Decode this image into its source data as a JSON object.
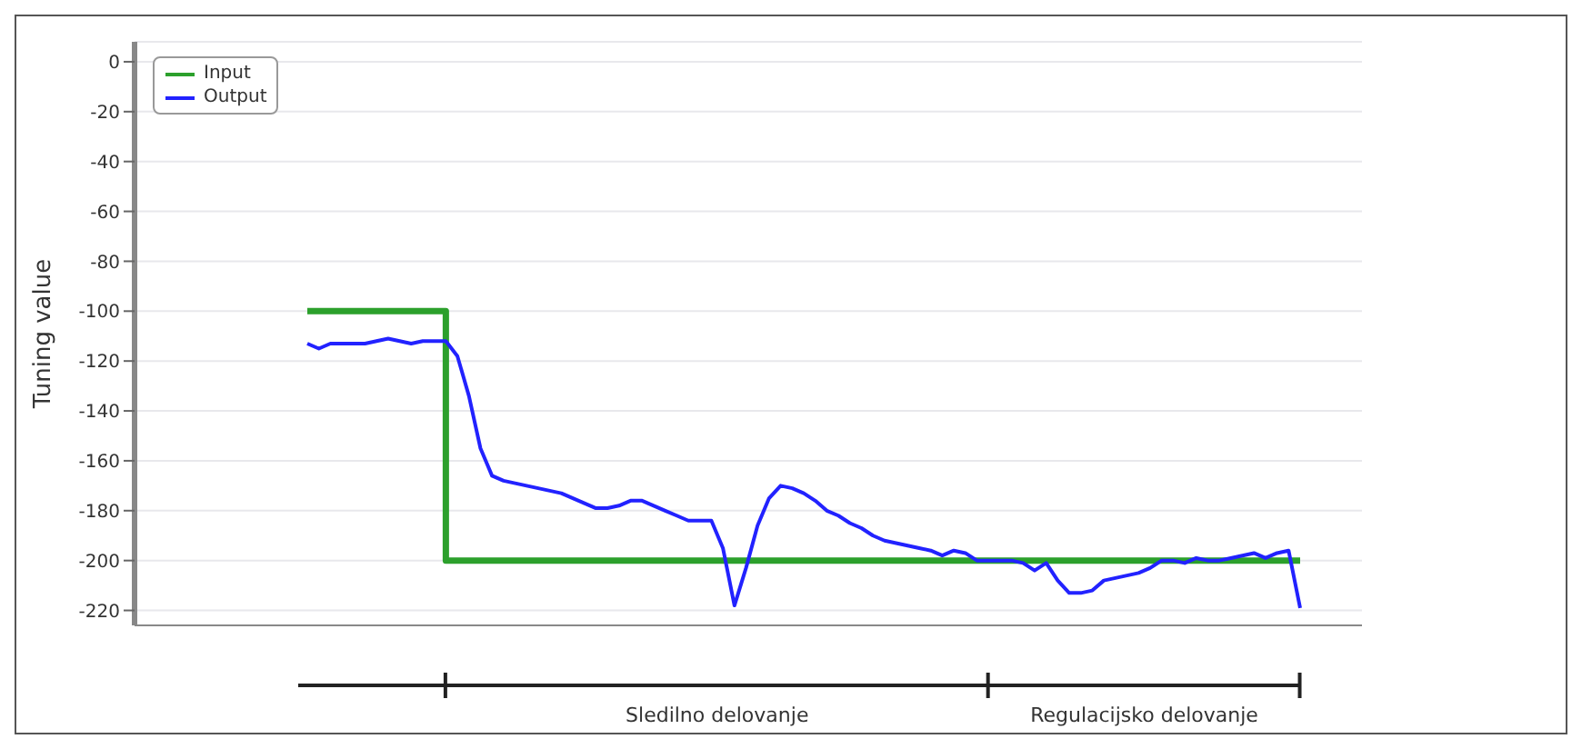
{
  "chart_data": {
    "type": "line",
    "ylabel": "Tuning value",
    "categories": [
      null,
      null,
      null,
      null,
      null,
      null,
      null,
      null,
      null,
      null,
      null,
      null,
      null,
      null,
      null,
      null,
      null,
      null,
      null,
      null,
      null,
      null,
      null,
      null,
      null,
      null,
      null,
      null,
      null,
      null,
      null,
      null,
      null,
      null,
      null,
      null,
      null,
      null,
      null,
      null,
      null,
      null,
      null,
      null,
      null,
      null,
      null,
      null,
      null,
      null,
      null,
      null,
      null,
      null,
      null,
      null,
      null,
      null,
      null,
      null,
      null,
      null,
      null,
      null,
      null,
      null,
      null,
      null,
      null,
      null,
      null,
      null,
      null,
      null,
      null,
      null,
      null,
      null,
      null,
      null,
      null,
      null,
      null,
      null,
      null,
      null,
      null
    ],
    "ylim": [
      -226,
      8
    ],
    "yticks": [
      0,
      -20,
      -40,
      -60,
      -80,
      -100,
      -120,
      -140,
      -160,
      -180,
      -200,
      -220
    ],
    "grid": "y",
    "legend": "top left",
    "line_style": "solid",
    "annotations": [
      "Sledilno delovanje",
      "Regulacijsko delovanje"
    ],
    "series": [
      {
        "name": "Input",
        "type": "step",
        "color": "#2ca02c",
        "values": [
          -100,
          -100,
          -100,
          -100,
          -100,
          -100,
          -100,
          -100,
          -100,
          -100,
          -100,
          -100,
          -200,
          -200,
          -200,
          -200,
          -200,
          -200,
          -200,
          -200,
          -200,
          -200,
          -200,
          -200,
          -200,
          -200,
          -200,
          -200,
          -200,
          -200,
          -200,
          -200,
          -200,
          -200,
          -200,
          -200,
          -200,
          -200,
          -200,
          -200,
          -200,
          -200,
          -200,
          -200,
          -200,
          -200,
          -200,
          -200,
          -200,
          -200,
          -200,
          -200,
          -200,
          -200,
          -200,
          -200,
          -200,
          -200,
          -200,
          -200,
          -200,
          -200,
          -200,
          -200,
          -200,
          -200,
          -200,
          -200,
          -200,
          -200,
          -200,
          -200,
          -200,
          -200,
          -200,
          -200,
          -200,
          -200,
          -200,
          -200,
          -200,
          -200,
          -200,
          -200,
          -200,
          -200,
          -200
        ]
      },
      {
        "name": "Output",
        "color": "#2222ff",
        "values": [
          -113,
          -115,
          -113,
          -113,
          -113,
          -113,
          -112,
          -111,
          -112,
          -113,
          -112,
          -112,
          -112,
          -118,
          -134,
          -155,
          -166,
          -168,
          -169,
          -170,
          -171,
          -172,
          -173,
          -175,
          -177,
          -179,
          -179,
          -178,
          -176,
          -176,
          -178,
          -180,
          -182,
          -184,
          -184,
          -184,
          -195,
          -218,
          -203,
          -186,
          -175,
          -170,
          -171,
          -173,
          -176,
          -180,
          -182,
          -185,
          -187,
          -190,
          -192,
          -193,
          -194,
          -195,
          -196,
          -198,
          -196,
          -197,
          -200,
          -200,
          -200,
          -200,
          -201,
          -204,
          -201,
          -208,
          -213,
          -213,
          -212,
          -208,
          -207,
          -206,
          -205,
          -203,
          -200,
          -200,
          -201,
          -199,
          -200,
          -200,
          -199,
          -198,
          -197,
          -199,
          -197,
          -196,
          -219
        ]
      }
    ]
  }
}
